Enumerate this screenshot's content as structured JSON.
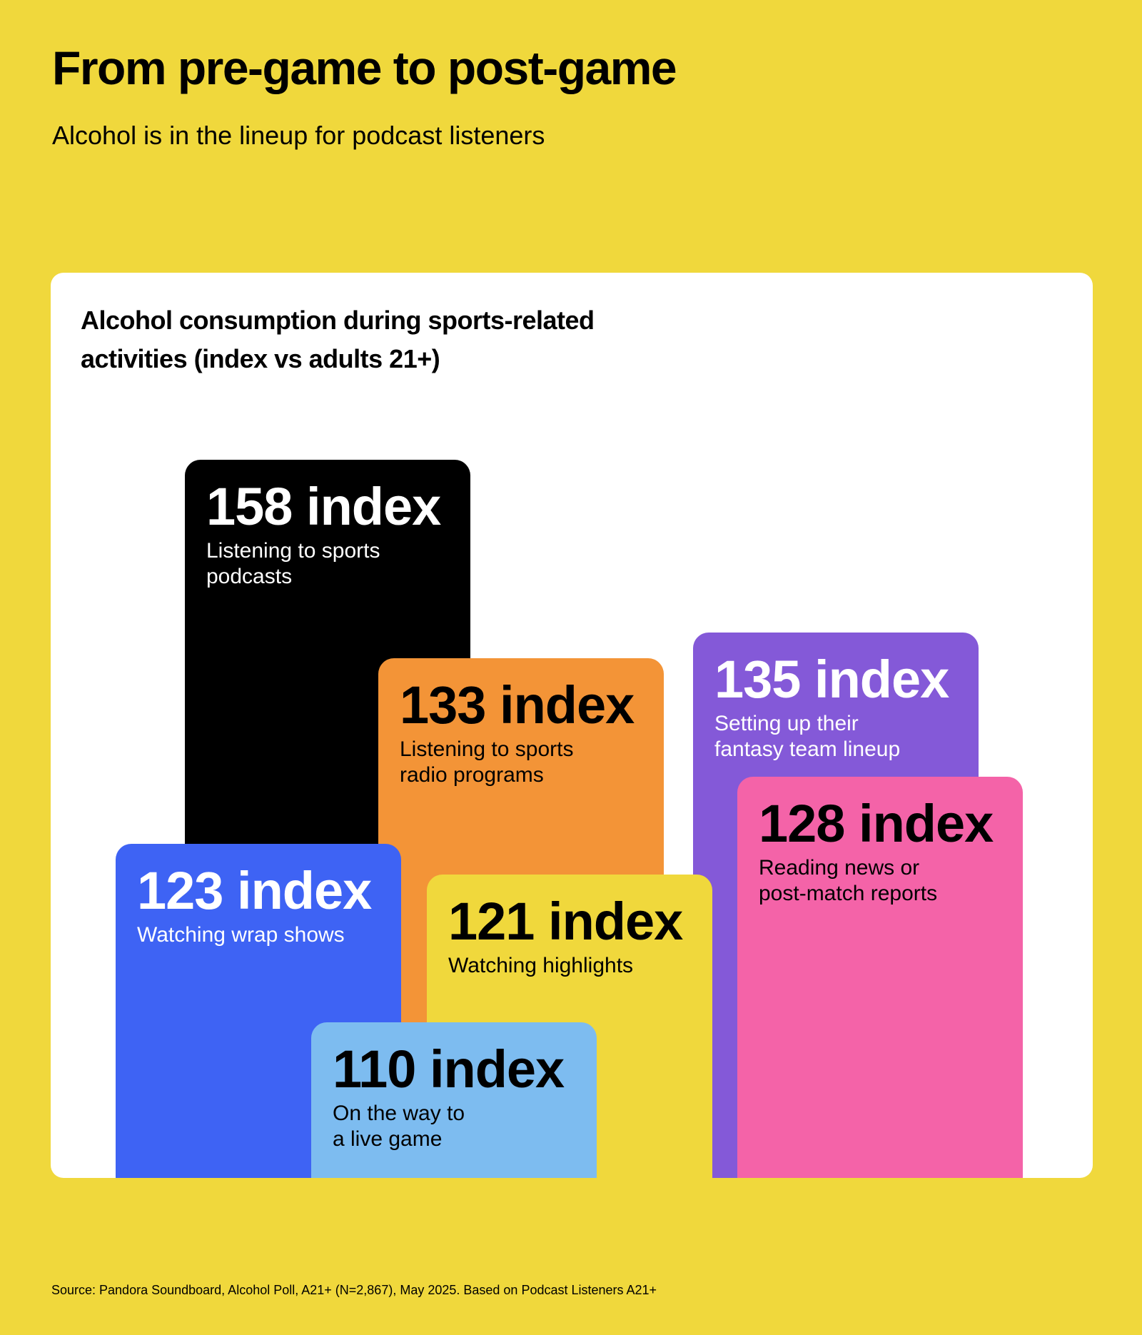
{
  "header": {
    "title": "From pre-game to post-game",
    "subtitle": "Alcohol is in the lineup for podcast listeners"
  },
  "card": {
    "title_line1": "Alcohol consumption during sports-related",
    "title_line2": "activities (index vs adults 21+)"
  },
  "chart_data": {
    "type": "bar",
    "title": "Alcohol consumption during sports-related activities (index vs adults 21+)",
    "unit": "index",
    "items": [
      {
        "value": 158,
        "value_label": "158 index",
        "label_line1": "Listening to sports",
        "label_line2": "podcasts",
        "color": "#000000"
      },
      {
        "value": 133,
        "value_label": "133 index",
        "label_line1": "Listening to sports",
        "label_line2": "radio programs",
        "color": "#F39437"
      },
      {
        "value": 123,
        "value_label": "123 index",
        "label_line1": "Watching wrap shows",
        "label_line2": "",
        "color": "#3E63F4"
      },
      {
        "value": 121,
        "value_label": "121 index",
        "label_line1": "Watching highlights",
        "label_line2": "",
        "color": "#F0D83C"
      },
      {
        "value": 110,
        "value_label": "110 index",
        "label_line1": "On the way to",
        "label_line2": "a live game",
        "color": "#7DBCF0"
      },
      {
        "value": 135,
        "value_label": "135 index",
        "label_line1": "Setting up their",
        "label_line2": "fantasy team lineup",
        "color": "#8459D8"
      },
      {
        "value": 128,
        "value_label": "128 index",
        "label_line1": "Reading news or",
        "label_line2": "post-match reports",
        "color": "#F463A8"
      }
    ]
  },
  "footer": {
    "source": "Source: Pandora Soundboard, Alcohol Poll, A21+ (N=2,867), May 2025. Based on Podcast Listeners A21+"
  }
}
